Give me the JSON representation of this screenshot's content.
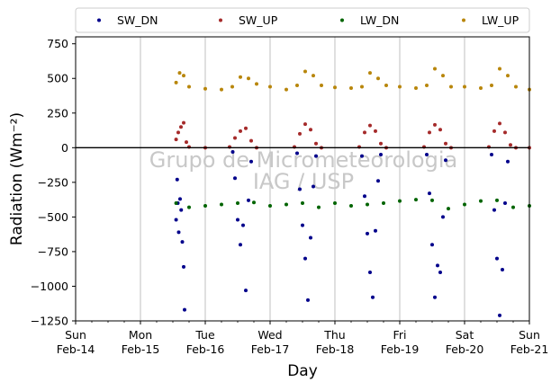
{
  "chart_data": {
    "type": "scatter",
    "xlabel": "Day",
    "ylabel": "Radiation (Wm⁻²)",
    "ylim": [
      -1250,
      800
    ],
    "yticks": [
      -1250,
      -1000,
      -750,
      -500,
      -250,
      0,
      250,
      500,
      750
    ],
    "ytick_labels": [
      "−1250",
      "−1000",
      "−750",
      "−500",
      "−250",
      "0",
      "250",
      "500",
      "750"
    ],
    "xlim": [
      "2021-02-14",
      "2021-02-21"
    ],
    "xticks": [
      {
        "date": "2021-02-14",
        "day": "Sun",
        "date_label": "Feb-14"
      },
      {
        "date": "2021-02-15",
        "day": "Mon",
        "date_label": "Feb-15"
      },
      {
        "date": "2021-02-16",
        "day": "Tue",
        "date_label": "Feb-16"
      },
      {
        "date": "2021-02-17",
        "day": "Wed",
        "date_label": "Feb-17"
      },
      {
        "date": "2021-02-18",
        "day": "Thu",
        "date_label": "Feb-18"
      },
      {
        "date": "2021-02-19",
        "day": "Fri",
        "date_label": "Feb-19"
      },
      {
        "date": "2021-02-20",
        "day": "Sat",
        "date_label": "Feb-20"
      },
      {
        "date": "2021-02-21",
        "day": "Sun",
        "date_label": "Feb-21"
      }
    ],
    "grid": "vertical",
    "legend_position": "top",
    "watermark": [
      "Grupo de Micrometeorologia",
      "IAG / USP"
    ],
    "series": [
      {
        "name": "SW_DN",
        "color": "#00008b",
        "points": [
          [
            "2021-02-15T13:12",
            -520
          ],
          [
            "2021-02-15T13:36",
            -230
          ],
          [
            "2021-02-15T13:50",
            -400
          ],
          [
            "2021-02-15T14:10",
            -610
          ],
          [
            "2021-02-15T14:40",
            -370
          ],
          [
            "2021-02-15T15:05",
            -450
          ],
          [
            "2021-02-15T15:30",
            -680
          ],
          [
            "2021-02-15T16:00",
            -860
          ],
          [
            "2021-02-15T16:20",
            -1170
          ],
          [
            "2021-02-16T10:10",
            -30
          ],
          [
            "2021-02-16T11:00",
            -220
          ],
          [
            "2021-02-16T12:00",
            -520
          ],
          [
            "2021-02-16T13:00",
            -700
          ],
          [
            "2021-02-16T14:00",
            -560
          ],
          [
            "2021-02-16T15:00",
            -1030
          ],
          [
            "2021-02-16T16:00",
            -380
          ],
          [
            "2021-02-16T17:00",
            -100
          ],
          [
            "2021-02-17T10:00",
            -40
          ],
          [
            "2021-02-17T11:00",
            -300
          ],
          [
            "2021-02-17T12:00",
            -560
          ],
          [
            "2021-02-17T13:00",
            -800
          ],
          [
            "2021-02-17T14:00",
            -1100
          ],
          [
            "2021-02-17T15:00",
            -650
          ],
          [
            "2021-02-17T16:00",
            -280
          ],
          [
            "2021-02-17T17:00",
            -60
          ],
          [
            "2021-02-18T10:00",
            -60
          ],
          [
            "2021-02-18T11:00",
            -350
          ],
          [
            "2021-02-18T12:00",
            -620
          ],
          [
            "2021-02-18T13:00",
            -900
          ],
          [
            "2021-02-18T14:00",
            -1080
          ],
          [
            "2021-02-18T15:00",
            -600
          ],
          [
            "2021-02-18T16:00",
            -240
          ],
          [
            "2021-02-18T17:00",
            -50
          ],
          [
            "2021-02-19T10:00",
            -50
          ],
          [
            "2021-02-19T11:00",
            -330
          ],
          [
            "2021-02-19T12:00",
            -700
          ],
          [
            "2021-02-19T13:00",
            -1080
          ],
          [
            "2021-02-19T14:00",
            -850
          ],
          [
            "2021-02-19T15:00",
            -900
          ],
          [
            "2021-02-19T16:00",
            -500
          ],
          [
            "2021-02-19T17:00",
            -90
          ],
          [
            "2021-02-20T10:00",
            -50
          ],
          [
            "2021-02-20T11:00",
            -450
          ],
          [
            "2021-02-20T12:00",
            -800
          ],
          [
            "2021-02-20T13:00",
            -1210
          ],
          [
            "2021-02-20T14:00",
            -880
          ],
          [
            "2021-02-20T15:00",
            -400
          ],
          [
            "2021-02-20T16:00",
            -100
          ]
        ]
      },
      {
        "name": "SW_UP",
        "color": "#a52a2a",
        "points": [
          [
            "2021-02-15T13:12",
            60
          ],
          [
            "2021-02-15T14:00",
            110
          ],
          [
            "2021-02-15T15:00",
            150
          ],
          [
            "2021-02-15T16:00",
            180
          ],
          [
            "2021-02-15T17:00",
            40
          ],
          [
            "2021-02-15T18:00",
            5
          ],
          [
            "2021-02-16T00:00",
            0
          ],
          [
            "2021-02-16T09:00",
            5
          ],
          [
            "2021-02-16T11:00",
            70
          ],
          [
            "2021-02-16T13:00",
            120
          ],
          [
            "2021-02-16T15:00",
            140
          ],
          [
            "2021-02-16T17:00",
            50
          ],
          [
            "2021-02-16T19:00",
            0
          ],
          [
            "2021-02-17T09:00",
            5
          ],
          [
            "2021-02-17T11:00",
            100
          ],
          [
            "2021-02-17T13:00",
            170
          ],
          [
            "2021-02-17T15:00",
            130
          ],
          [
            "2021-02-17T17:00",
            30
          ],
          [
            "2021-02-17T19:00",
            0
          ],
          [
            "2021-02-18T09:00",
            5
          ],
          [
            "2021-02-18T11:00",
            110
          ],
          [
            "2021-02-18T13:00",
            160
          ],
          [
            "2021-02-18T15:00",
            120
          ],
          [
            "2021-02-18T17:00",
            30
          ],
          [
            "2021-02-18T19:00",
            0
          ],
          [
            "2021-02-19T09:00",
            5
          ],
          [
            "2021-02-19T11:00",
            110
          ],
          [
            "2021-02-19T13:00",
            165
          ],
          [
            "2021-02-19T15:00",
            130
          ],
          [
            "2021-02-19T17:00",
            30
          ],
          [
            "2021-02-19T19:00",
            0
          ],
          [
            "2021-02-20T09:00",
            5
          ],
          [
            "2021-02-20T11:00",
            120
          ],
          [
            "2021-02-20T13:00",
            175
          ],
          [
            "2021-02-20T15:00",
            110
          ],
          [
            "2021-02-20T17:00",
            20
          ],
          [
            "2021-02-20T19:00",
            0
          ],
          [
            "2021-02-21T00:00",
            0
          ]
        ]
      },
      {
        "name": "LW_DN",
        "color": "#006400",
        "points": [
          [
            "2021-02-15T13:12",
            -400
          ],
          [
            "2021-02-15T18:00",
            -430
          ],
          [
            "2021-02-16T00:00",
            -420
          ],
          [
            "2021-02-16T06:00",
            -410
          ],
          [
            "2021-02-16T12:00",
            -400
          ],
          [
            "2021-02-16T18:00",
            -395
          ],
          [
            "2021-02-17T00:00",
            -420
          ],
          [
            "2021-02-17T06:00",
            -410
          ],
          [
            "2021-02-17T12:00",
            -400
          ],
          [
            "2021-02-17T18:00",
            -430
          ],
          [
            "2021-02-18T00:00",
            -400
          ],
          [
            "2021-02-18T06:00",
            -420
          ],
          [
            "2021-02-18T12:00",
            -410
          ],
          [
            "2021-02-18T18:00",
            -400
          ],
          [
            "2021-02-19T00:00",
            -385
          ],
          [
            "2021-02-19T06:00",
            -375
          ],
          [
            "2021-02-19T12:00",
            -380
          ],
          [
            "2021-02-19T18:00",
            -440
          ],
          [
            "2021-02-20T00:00",
            -410
          ],
          [
            "2021-02-20T06:00",
            -385
          ],
          [
            "2021-02-20T12:00",
            -380
          ],
          [
            "2021-02-20T18:00",
            -430
          ],
          [
            "2021-02-21T00:00",
            -420
          ]
        ]
      },
      {
        "name": "LW_UP",
        "color": "#b8860b",
        "points": [
          [
            "2021-02-15T13:12",
            470
          ],
          [
            "2021-02-15T14:30",
            540
          ],
          [
            "2021-02-15T16:00",
            520
          ],
          [
            "2021-02-15T18:00",
            440
          ],
          [
            "2021-02-16T00:00",
            425
          ],
          [
            "2021-02-16T06:00",
            420
          ],
          [
            "2021-02-16T10:00",
            440
          ],
          [
            "2021-02-16T13:00",
            510
          ],
          [
            "2021-02-16T16:00",
            500
          ],
          [
            "2021-02-16T19:00",
            460
          ],
          [
            "2021-02-17T00:00",
            440
          ],
          [
            "2021-02-17T06:00",
            420
          ],
          [
            "2021-02-17T10:00",
            450
          ],
          [
            "2021-02-17T13:00",
            550
          ],
          [
            "2021-02-17T16:00",
            520
          ],
          [
            "2021-02-17T19:00",
            450
          ],
          [
            "2021-02-18T00:00",
            435
          ],
          [
            "2021-02-18T06:00",
            430
          ],
          [
            "2021-02-18T10:00",
            440
          ],
          [
            "2021-02-18T13:00",
            540
          ],
          [
            "2021-02-18T16:00",
            500
          ],
          [
            "2021-02-18T19:00",
            450
          ],
          [
            "2021-02-19T00:00",
            440
          ],
          [
            "2021-02-19T06:00",
            430
          ],
          [
            "2021-02-19T10:00",
            450
          ],
          [
            "2021-02-19T13:00",
            570
          ],
          [
            "2021-02-19T16:00",
            520
          ],
          [
            "2021-02-19T19:00",
            440
          ],
          [
            "2021-02-20T00:00",
            440
          ],
          [
            "2021-02-20T06:00",
            430
          ],
          [
            "2021-02-20T10:00",
            450
          ],
          [
            "2021-02-20T13:00",
            570
          ],
          [
            "2021-02-20T16:00",
            520
          ],
          [
            "2021-02-20T19:00",
            440
          ],
          [
            "2021-02-21T00:00",
            420
          ]
        ]
      }
    ]
  }
}
